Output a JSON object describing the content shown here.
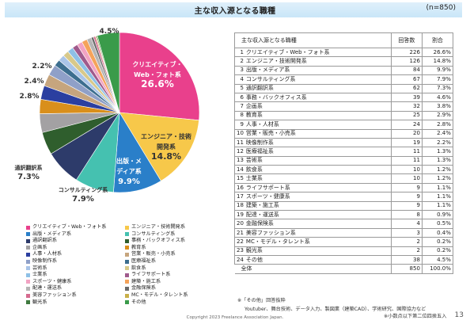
{
  "header": {
    "title": "主な収入源となる職種",
    "n": "(n=850)"
  },
  "table": {
    "col_category": "主な収入源となる職種",
    "col_count": "回答数",
    "col_pct": "割合",
    "rows": [
      {
        "rank": "1",
        "name": "クリエイティブ・Web・フォト系",
        "count": "226",
        "pct": "26.6%"
      },
      {
        "rank": "2",
        "name": "エンジニア・技術開発系",
        "count": "126",
        "pct": "14.8%"
      },
      {
        "rank": "3",
        "name": "出版・メディア系",
        "count": "84",
        "pct": "9.9%"
      },
      {
        "rank": "4",
        "name": "コンサルティング系",
        "count": "67",
        "pct": "7.9%"
      },
      {
        "rank": "5",
        "name": "通訳翻訳系",
        "count": "62",
        "pct": "7.3%"
      },
      {
        "rank": "6",
        "name": "事務・バックオフィス系",
        "count": "39",
        "pct": "4.6%"
      },
      {
        "rank": "7",
        "name": "企画系",
        "count": "32",
        "pct": "3.8%"
      },
      {
        "rank": "8",
        "name": "教育系",
        "count": "25",
        "pct": "2.9%"
      },
      {
        "rank": "9",
        "name": "人事・人材系",
        "count": "24",
        "pct": "2.8%"
      },
      {
        "rank": "10",
        "name": "営業・販売・小売系",
        "count": "20",
        "pct": "2.4%"
      },
      {
        "rank": "11",
        "name": "映像制作系",
        "count": "19",
        "pct": "2.2%"
      },
      {
        "rank": "12",
        "name": "医療福祉系",
        "count": "11",
        "pct": "1.3%"
      },
      {
        "rank": "13",
        "name": "芸術系",
        "count": "11",
        "pct": "1.3%"
      },
      {
        "rank": "14",
        "name": "飲食系",
        "count": "10",
        "pct": "1.2%"
      },
      {
        "rank": "15",
        "name": "士業系",
        "count": "10",
        "pct": "1.2%"
      },
      {
        "rank": "16",
        "name": "ライフサポート系",
        "count": "9",
        "pct": "1.1%"
      },
      {
        "rank": "17",
        "name": "スポーツ・健康系",
        "count": "9",
        "pct": "1.1%"
      },
      {
        "rank": "18",
        "name": "建築・施工系",
        "count": "9",
        "pct": "1.1%"
      },
      {
        "rank": "19",
        "name": "配達・運送系",
        "count": "8",
        "pct": "0.9%"
      },
      {
        "rank": "20",
        "name": "金融保険系",
        "count": "4",
        "pct": "0.5%"
      },
      {
        "rank": "21",
        "name": "美容ファッション系",
        "count": "3",
        "pct": "0.4%"
      },
      {
        "rank": "22",
        "name": "MC・モデル・タレント系",
        "count": "2",
        "pct": "0.2%"
      },
      {
        "rank": "23",
        "name": "観光系",
        "count": "2",
        "pct": "0.2%"
      },
      {
        "rank": "24",
        "name": "その他",
        "count": "38",
        "pct": "4.5%"
      }
    ],
    "total": {
      "name": "全体",
      "count": "850",
      "pct": "100.0%"
    }
  },
  "notes": {
    "line1": "※「その他」回答抜粋",
    "line2": "Youtuber、舞台技術、データ入力、製図業（建築CAD）、学術研究、国際協力など",
    "line3": "※小数点以下第二位四捨五入"
  },
  "footer": {
    "copyright": "Copyright 2023 Freelance Association Japan.",
    "page": "13"
  },
  "chart_data": {
    "type": "pie",
    "title": "",
    "categories": [
      "クリエイティブ・Web・フォト系",
      "エンジニア・技術開発系",
      "出版・メディア系",
      "コンサルティング系",
      "通訳翻訳系",
      "事務・バックオフィス系",
      "企画系",
      "教育系",
      "人事・人材系",
      "営業・販売・小売系",
      "映像制作系",
      "医療福祉系",
      "芸術系",
      "飲食系",
      "士業系",
      "ライフサポート系",
      "スポーツ・健康系",
      "建築・施工系",
      "配達・運送系",
      "金融保険系",
      "美容ファッション系",
      "MC・モデル・タレント系",
      "観光系",
      "その他"
    ],
    "values": [
      26.6,
      14.8,
      9.9,
      7.9,
      7.3,
      4.6,
      3.8,
      2.9,
      2.8,
      2.4,
      2.2,
      1.3,
      1.3,
      1.2,
      1.2,
      1.1,
      1.1,
      1.1,
      0.9,
      0.5,
      0.4,
      0.2,
      0.2,
      4.5
    ],
    "colors": [
      "#e9408c",
      "#f7c84a",
      "#2a7fc9",
      "#45c1b0",
      "#2d3b6a",
      "#2f5e2d",
      "#a3a1a3",
      "#d98f1b",
      "#2b3fa0",
      "#c6a57e",
      "#8fa0c8",
      "#3c6e8f",
      "#a9c4e8",
      "#d8c98a",
      "#8ec0e6",
      "#a05a8c",
      "#f2a3c3",
      "#f5a35a",
      "#b5b5b5",
      "#6b6b6b",
      "#d66b8f",
      "#c9b04a",
      "#3f7a3f",
      "#3a9b4a"
    ],
    "legend_position": "bottom",
    "slice_labels": [
      {
        "index": 0,
        "text": [
          "クリエイティブ・",
          "Web・フォト系",
          "26.6%"
        ]
      },
      {
        "index": 1,
        "text": [
          "エンジニア・技術",
          "開発系",
          "14.8%"
        ]
      },
      {
        "index": 2,
        "text": [
          "出版・メ",
          "ディア系",
          "9.9%"
        ]
      },
      {
        "index": 3,
        "text": [
          "コンサルティング系",
          "7.9%"
        ]
      },
      {
        "index": 4,
        "text": [
          "通訳翻訳系",
          "7.3%"
        ]
      },
      {
        "index": 8,
        "text": [
          "2.8%"
        ]
      },
      {
        "index": 9,
        "text": [
          "2.4%"
        ]
      },
      {
        "index": 10,
        "text": [
          "2.2%"
        ]
      },
      {
        "index": 23,
        "text": [
          "4.5%"
        ]
      }
    ]
  }
}
